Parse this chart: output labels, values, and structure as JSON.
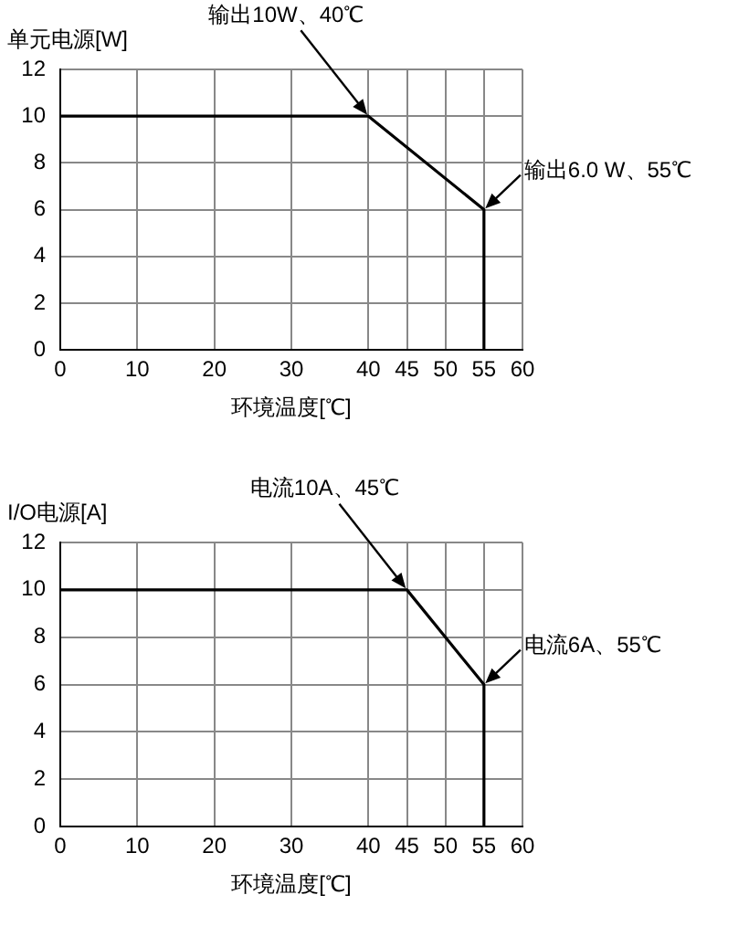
{
  "chart_data": [
    {
      "type": "line",
      "ylabel": "单元电源[W]",
      "xlabel": "环境温度[℃]",
      "xlim": [
        0,
        60
      ],
      "xticks": [
        0,
        10,
        20,
        30,
        40,
        45,
        50,
        55,
        60
      ],
      "ylim": [
        0,
        12
      ],
      "yticks": [
        0,
        2,
        4,
        6,
        8,
        10,
        12
      ],
      "grid": true,
      "legend": false,
      "series": [
        {
          "color": "#000000",
          "x": [
            0,
            40,
            55,
            55
          ],
          "values": [
            10,
            10,
            6,
            0
          ]
        }
      ],
      "annotations": [
        {
          "text": "输出10W、40℃",
          "x": 40,
          "y": 10
        },
        {
          "text": "输出6.0 W、55℃",
          "x": 55,
          "y": 6
        }
      ]
    },
    {
      "type": "line",
      "ylabel": "I/O电源[A]",
      "xlabel": "环境温度[℃]",
      "xlim": [
        0,
        60
      ],
      "xticks": [
        0,
        10,
        20,
        30,
        40,
        45,
        50,
        55,
        60
      ],
      "ylim": [
        0,
        12
      ],
      "yticks": [
        0,
        2,
        4,
        6,
        8,
        10,
        12
      ],
      "grid": true,
      "legend": false,
      "series": [
        {
          "color": "#000000",
          "x": [
            0,
            45,
            55,
            55
          ],
          "values": [
            10,
            10,
            6,
            0
          ]
        }
      ],
      "annotations": [
        {
          "text": "电流10A、45℃",
          "x": 45,
          "y": 10
        },
        {
          "text": "电流6A、55℃",
          "x": 55,
          "y": 6
        }
      ]
    }
  ]
}
